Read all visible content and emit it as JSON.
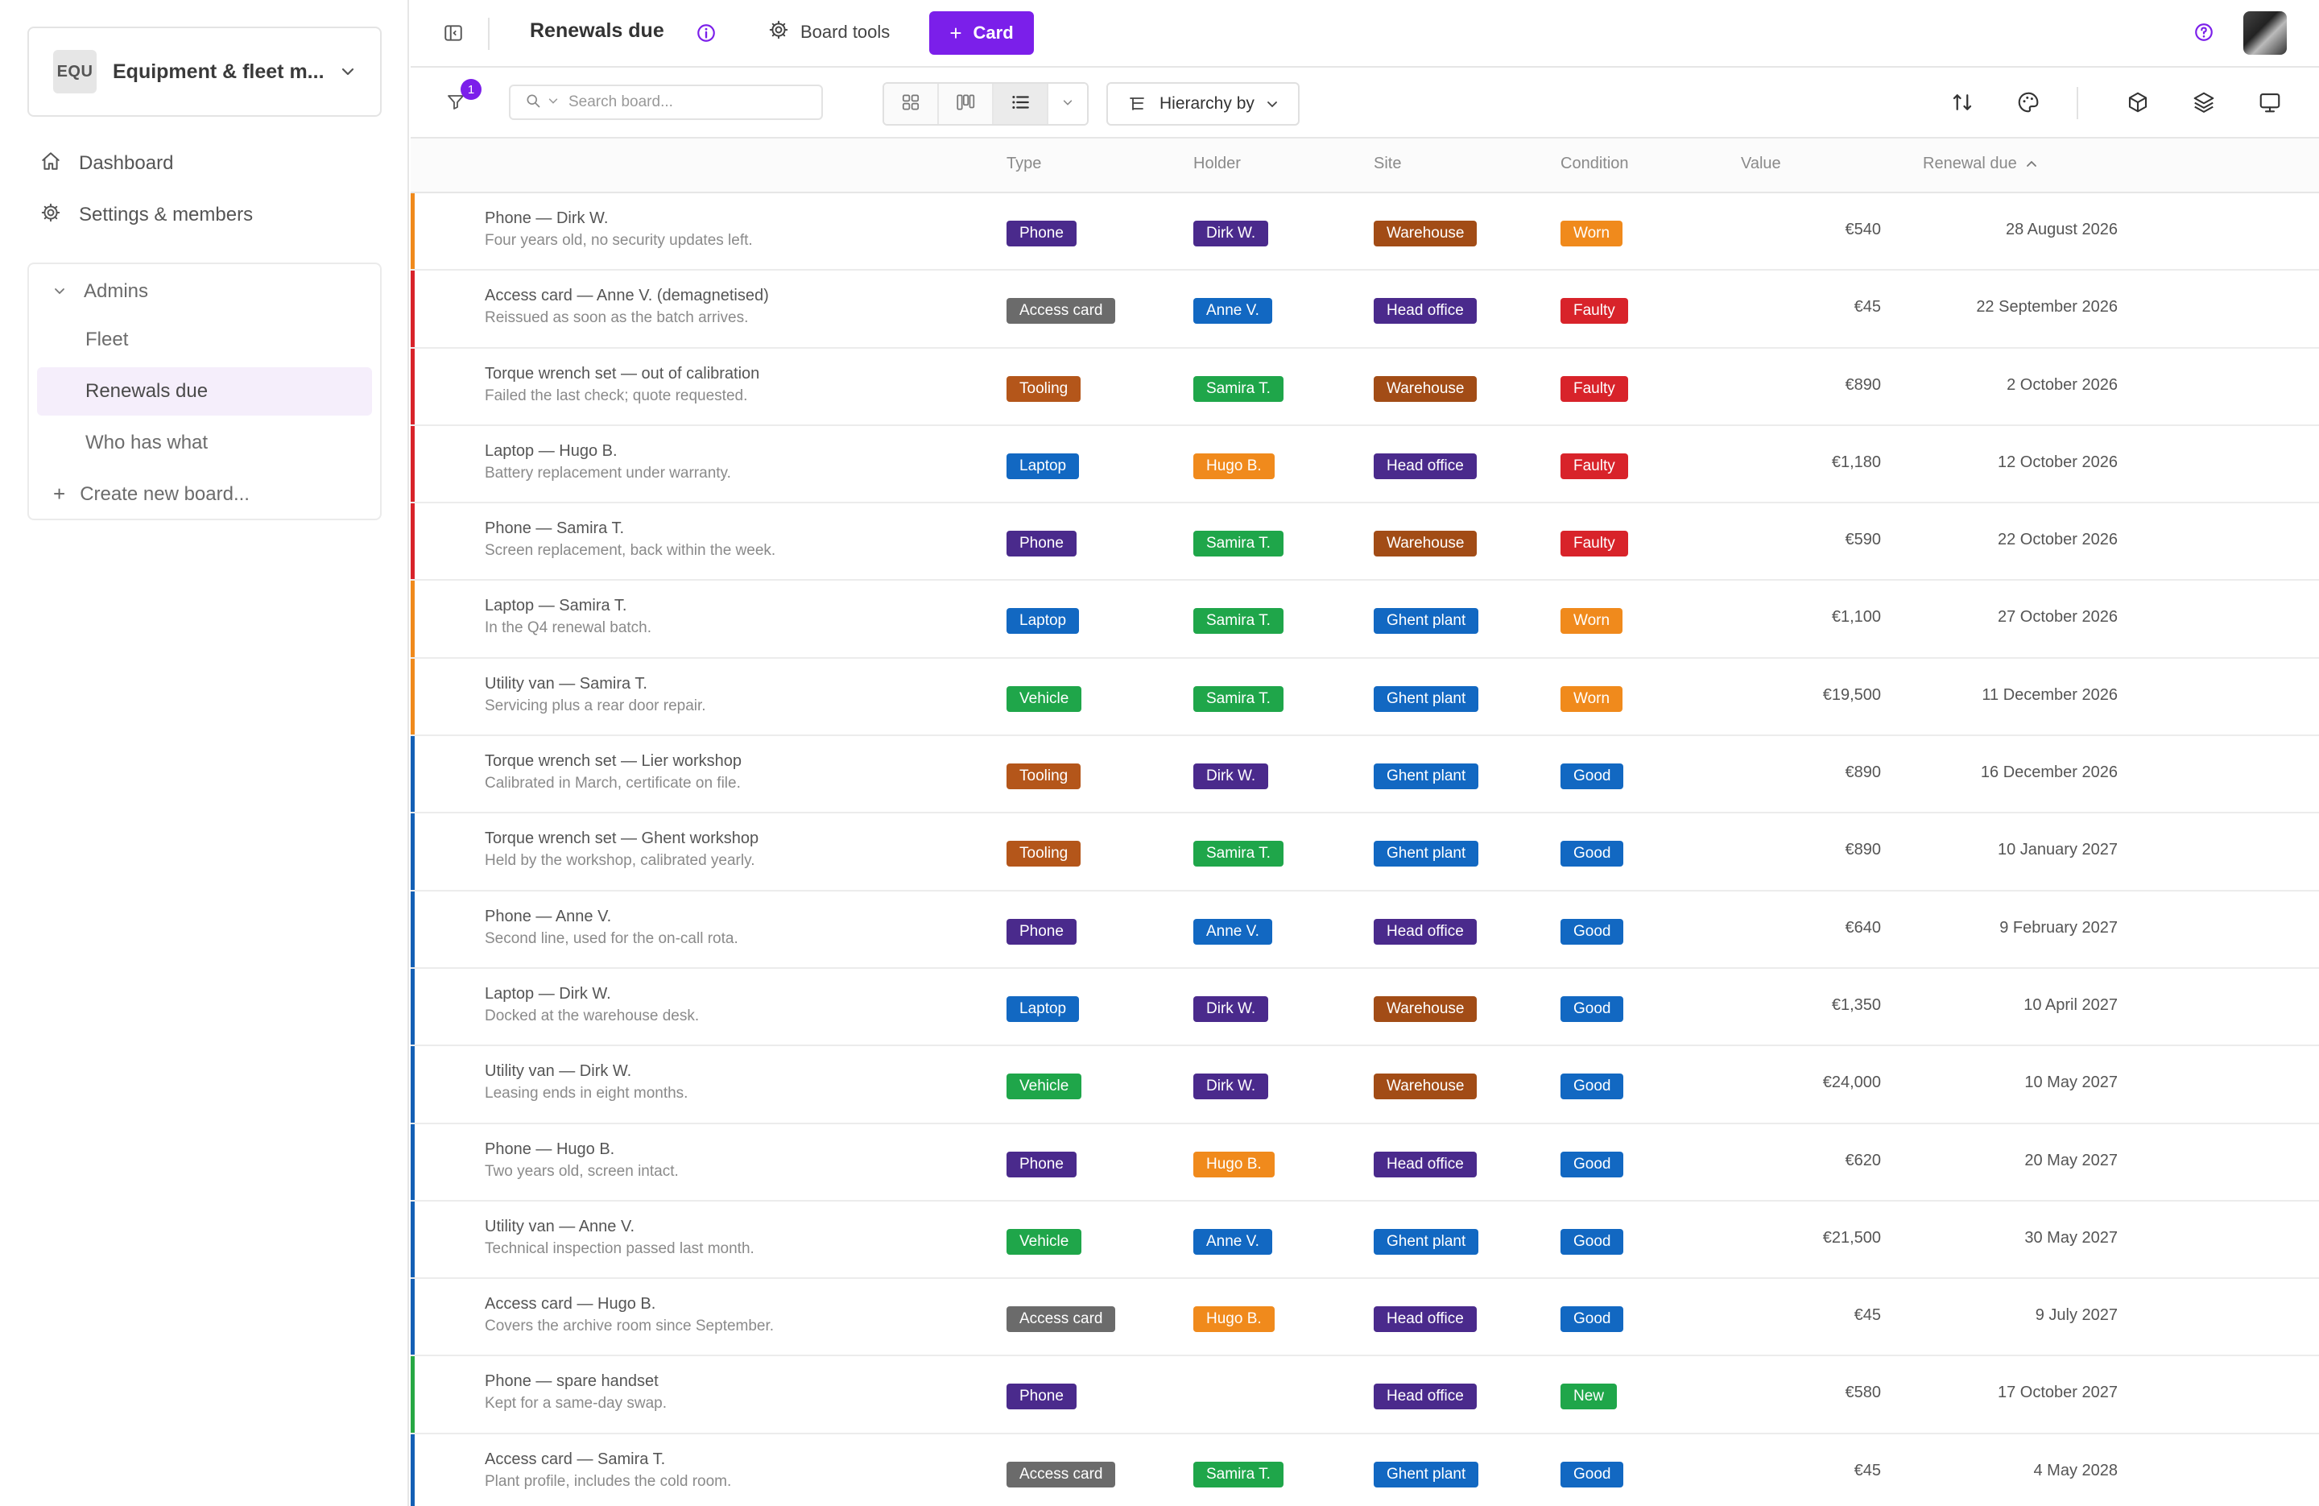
{
  "colors": {
    "accent": "#7b1fea",
    "stripe_worn": "#f08a1c",
    "stripe_faulty": "#d8232a",
    "stripe_good": "#1460b5",
    "stripe_new": "#27a844",
    "tag_phone": "#4a2a8c",
    "tag_access_card": "#6b6b6b",
    "tag_tooling": "#b4561a",
    "tag_laptop": "#1268c2",
    "tag_vehicle": "#1fa64a",
    "holder_dirk": "#4a2a8c",
    "holder_anne": "#1268c2",
    "holder_samira": "#1fa64a",
    "holder_hugo": "#f08a1c",
    "site_warehouse": "#a24c16",
    "site_head_office": "#4a2a8c",
    "site_ghent": "#1268c2",
    "cond_worn": "#f08a1c",
    "cond_faulty": "#d8232a",
    "cond_good": "#1268c2",
    "cond_new": "#1fa64a"
  },
  "sidebar": {
    "workspace_badge": "EQU",
    "workspace_name": "Equipment & fleet m...",
    "nav": [
      {
        "label": "Dashboard",
        "icon": "home-icon"
      },
      {
        "label": "Settings & members",
        "icon": "gear-icon"
      }
    ],
    "group_label": "Admins",
    "boards": [
      {
        "label": "Fleet",
        "active": false
      },
      {
        "label": "Renewals due",
        "active": true
      },
      {
        "label": "Who has what",
        "active": false
      }
    ],
    "create_label": "Create new board..."
  },
  "topbar": {
    "title": "Renewals due",
    "board_tools": "Board tools",
    "card_button": "Card"
  },
  "filterbar": {
    "filter_count": "1",
    "search_placeholder": "Search board...",
    "hierarchy_label": "Hierarchy by"
  },
  "table": {
    "columns": {
      "type": "Type",
      "holder": "Holder",
      "site": "Site",
      "condition": "Condition",
      "value": "Value",
      "renewal": "Renewal due"
    },
    "rows": [
      {
        "stripe": "#f08a1c",
        "title": "Phone — Dirk W.",
        "desc": "Four years old, no security updates left.",
        "type": "Phone",
        "type_color": "#4a2a8c",
        "holder": "Dirk W.",
        "holder_color": "#4a2a8c",
        "site": "Warehouse",
        "site_color": "#a24c16",
        "condition": "Worn",
        "cond_color": "#f08a1c",
        "value": "€540",
        "renewal": "28 August 2026"
      },
      {
        "stripe": "#d8232a",
        "title": "Access card — Anne V. (demagnetised)",
        "desc": "Reissued as soon as the batch arrives.",
        "type": "Access card",
        "type_color": "#6b6b6b",
        "holder": "Anne V.",
        "holder_color": "#1268c2",
        "site": "Head office",
        "site_color": "#4a2a8c",
        "condition": "Faulty",
        "cond_color": "#d8232a",
        "value": "€45",
        "renewal": "22 September 2026"
      },
      {
        "stripe": "#d8232a",
        "title": "Torque wrench set — out of calibration",
        "desc": "Failed the last check; quote requested.",
        "type": "Tooling",
        "type_color": "#b4561a",
        "holder": "Samira T.",
        "holder_color": "#1fa64a",
        "site": "Warehouse",
        "site_color": "#a24c16",
        "condition": "Faulty",
        "cond_color": "#d8232a",
        "value": "€890",
        "renewal": "2 October 2026"
      },
      {
        "stripe": "#d8232a",
        "title": "Laptop — Hugo B.",
        "desc": "Battery replacement under warranty.",
        "type": "Laptop",
        "type_color": "#1268c2",
        "holder": "Hugo B.",
        "holder_color": "#f08a1c",
        "site": "Head office",
        "site_color": "#4a2a8c",
        "condition": "Faulty",
        "cond_color": "#d8232a",
        "value": "€1,180",
        "renewal": "12 October 2026"
      },
      {
        "stripe": "#d8232a",
        "title": "Phone — Samira T.",
        "desc": "Screen replacement, back within the week.",
        "type": "Phone",
        "type_color": "#4a2a8c",
        "holder": "Samira T.",
        "holder_color": "#1fa64a",
        "site": "Warehouse",
        "site_color": "#a24c16",
        "condition": "Faulty",
        "cond_color": "#d8232a",
        "value": "€590",
        "renewal": "22 October 2026"
      },
      {
        "stripe": "#f08a1c",
        "title": "Laptop — Samira T.",
        "desc": "In the Q4 renewal batch.",
        "type": "Laptop",
        "type_color": "#1268c2",
        "holder": "Samira T.",
        "holder_color": "#1fa64a",
        "site": "Ghent plant",
        "site_color": "#1268c2",
        "condition": "Worn",
        "cond_color": "#f08a1c",
        "value": "€1,100",
        "renewal": "27 October 2026"
      },
      {
        "stripe": "#f08a1c",
        "title": "Utility van — Samira T.",
        "desc": "Servicing plus a rear door repair.",
        "type": "Vehicle",
        "type_color": "#1fa64a",
        "holder": "Samira T.",
        "holder_color": "#1fa64a",
        "site": "Ghent plant",
        "site_color": "#1268c2",
        "condition": "Worn",
        "cond_color": "#f08a1c",
        "value": "€19,500",
        "renewal": "11 December 2026"
      },
      {
        "stripe": "#1460b5",
        "title": "Torque wrench set — Lier workshop",
        "desc": "Calibrated in March, certificate on file.",
        "type": "Tooling",
        "type_color": "#b4561a",
        "holder": "Dirk W.",
        "holder_color": "#4a2a8c",
        "site": "Ghent plant",
        "site_color": "#1268c2",
        "condition": "Good",
        "cond_color": "#1268c2",
        "value": "€890",
        "renewal": "16 December 2026"
      },
      {
        "stripe": "#1460b5",
        "title": "Torque wrench set — Ghent workshop",
        "desc": "Held by the workshop, calibrated yearly.",
        "type": "Tooling",
        "type_color": "#b4561a",
        "holder": "Samira T.",
        "holder_color": "#1fa64a",
        "site": "Ghent plant",
        "site_color": "#1268c2",
        "condition": "Good",
        "cond_color": "#1268c2",
        "value": "€890",
        "renewal": "10 January 2027"
      },
      {
        "stripe": "#1460b5",
        "title": "Phone — Anne V.",
        "desc": "Second line, used for the on-call rota.",
        "type": "Phone",
        "type_color": "#4a2a8c",
        "holder": "Anne V.",
        "holder_color": "#1268c2",
        "site": "Head office",
        "site_color": "#4a2a8c",
        "condition": "Good",
        "cond_color": "#1268c2",
        "value": "€640",
        "renewal": "9 February 2027"
      },
      {
        "stripe": "#1460b5",
        "title": "Laptop — Dirk W.",
        "desc": "Docked at the warehouse desk.",
        "type": "Laptop",
        "type_color": "#1268c2",
        "holder": "Dirk W.",
        "holder_color": "#4a2a8c",
        "site": "Warehouse",
        "site_color": "#a24c16",
        "condition": "Good",
        "cond_color": "#1268c2",
        "value": "€1,350",
        "renewal": "10 April 2027"
      },
      {
        "stripe": "#1460b5",
        "title": "Utility van — Dirk W.",
        "desc": "Leasing ends in eight months.",
        "type": "Vehicle",
        "type_color": "#1fa64a",
        "holder": "Dirk W.",
        "holder_color": "#4a2a8c",
        "site": "Warehouse",
        "site_color": "#a24c16",
        "condition": "Good",
        "cond_color": "#1268c2",
        "value": "€24,000",
        "renewal": "10 May 2027"
      },
      {
        "stripe": "#1460b5",
        "title": "Phone — Hugo B.",
        "desc": "Two years old, screen intact.",
        "type": "Phone",
        "type_color": "#4a2a8c",
        "holder": "Hugo B.",
        "holder_color": "#f08a1c",
        "site": "Head office",
        "site_color": "#4a2a8c",
        "condition": "Good",
        "cond_color": "#1268c2",
        "value": "€620",
        "renewal": "20 May 2027"
      },
      {
        "stripe": "#1460b5",
        "title": "Utility van — Anne V.",
        "desc": "Technical inspection passed last month.",
        "type": "Vehicle",
        "type_color": "#1fa64a",
        "holder": "Anne V.",
        "holder_color": "#1268c2",
        "site": "Ghent plant",
        "site_color": "#1268c2",
        "condition": "Good",
        "cond_color": "#1268c2",
        "value": "€21,500",
        "renewal": "30 May 2027"
      },
      {
        "stripe": "#1460b5",
        "title": "Access card — Hugo B.",
        "desc": "Covers the archive room since September.",
        "type": "Access card",
        "type_color": "#6b6b6b",
        "holder": "Hugo B.",
        "holder_color": "#f08a1c",
        "site": "Head office",
        "site_color": "#4a2a8c",
        "condition": "Good",
        "cond_color": "#1268c2",
        "value": "€45",
        "renewal": "9 July 2027"
      },
      {
        "stripe": "#27a844",
        "title": "Phone — spare handset",
        "desc": "Kept for a same-day swap.",
        "type": "Phone",
        "type_color": "#4a2a8c",
        "holder": "",
        "holder_color": "",
        "site": "Head office",
        "site_color": "#4a2a8c",
        "condition": "New",
        "cond_color": "#1fa64a",
        "value": "€580",
        "renewal": "17 October 2027"
      },
      {
        "stripe": "#1460b5",
        "title": "Access card — Samira T.",
        "desc": "Plant profile, includes the cold room.",
        "type": "Access card",
        "type_color": "#6b6b6b",
        "holder": "Samira T.",
        "holder_color": "#1fa64a",
        "site": "Ghent plant",
        "site_color": "#1268c2",
        "condition": "Good",
        "cond_color": "#1268c2",
        "value": "€45",
        "renewal": "4 May 2028"
      }
    ]
  }
}
